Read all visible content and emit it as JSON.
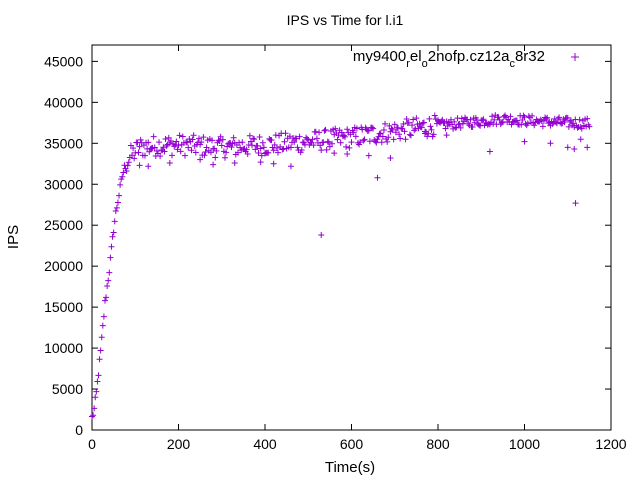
{
  "chart_data": {
    "type": "scatter",
    "title": "IPS vs Time for l.i1",
    "xlabel": "Time(s)",
    "ylabel": "IPS",
    "xlim": [
      0,
      1200
    ],
    "ylim": [
      0,
      47000
    ],
    "xticks": [
      0,
      200,
      400,
      600,
      800,
      1000,
      1200
    ],
    "yticks": [
      0,
      5000,
      10000,
      15000,
      20000,
      25000,
      30000,
      35000,
      40000,
      45000
    ],
    "grid": false,
    "legend_position": "top-right",
    "marker": "+",
    "color": "#9400d3",
    "series": [
      {
        "name": "my9400_rel_o2nofp.cz12a_c8r32",
        "legend_parts": [
          {
            "text": "my9400",
            "sub": false
          },
          {
            "text": "r",
            "sub": true
          },
          {
            "text": "el",
            "sub": false
          },
          {
            "text": "o",
            "sub": true
          },
          {
            "text": "2nofp.cz12a",
            "sub": false
          },
          {
            "text": "c",
            "sub": true
          },
          {
            "text": "8r32",
            "sub": false
          }
        ],
        "trend": [
          [
            0,
            1500
          ],
          [
            5,
            2500
          ],
          [
            10,
            4500
          ],
          [
            15,
            7000
          ],
          [
            20,
            9500
          ],
          [
            25,
            12500
          ],
          [
            30,
            15500
          ],
          [
            35,
            17500
          ],
          [
            40,
            19500
          ],
          [
            45,
            22000
          ],
          [
            50,
            24500
          ],
          [
            55,
            26500
          ],
          [
            60,
            28000
          ],
          [
            65,
            29500
          ],
          [
            70,
            31000
          ],
          [
            75,
            32000
          ],
          [
            80,
            32500
          ],
          [
            90,
            33500
          ],
          [
            100,
            34000
          ],
          [
            110,
            34500
          ],
          [
            150,
            34700
          ],
          [
            200,
            34800
          ],
          [
            300,
            34500
          ],
          [
            400,
            34800
          ],
          [
            500,
            35200
          ],
          [
            600,
            35700
          ],
          [
            700,
            36500
          ],
          [
            800,
            37200
          ],
          [
            900,
            37700
          ],
          [
            950,
            38000
          ],
          [
            1000,
            37800
          ],
          [
            1100,
            37500
          ],
          [
            1150,
            37400
          ]
        ],
        "x_end": 1150,
        "sample_step_s": 2.5,
        "outliers": [
          [
            530,
            23800
          ],
          [
            660,
            30800
          ],
          [
            1118,
            27700
          ],
          [
            1115,
            34300
          ],
          [
            920,
            34000
          ],
          [
            1000,
            35200
          ],
          [
            1060,
            35000
          ],
          [
            1100,
            34500
          ],
          [
            820,
            36000
          ],
          [
            770,
            36200
          ],
          [
            690,
            33200
          ],
          [
            640,
            33500
          ],
          [
            590,
            33700
          ],
          [
            560,
            33800
          ],
          [
            460,
            32200
          ],
          [
            420,
            32500
          ],
          [
            390,
            32700
          ],
          [
            330,
            32600
          ],
          [
            280,
            32400
          ],
          [
            250,
            33000
          ],
          [
            180,
            32600
          ],
          [
            130,
            32200
          ],
          [
            110,
            32300
          ],
          [
            1130,
            35500
          ],
          [
            1145,
            34500
          ]
        ]
      }
    ]
  }
}
